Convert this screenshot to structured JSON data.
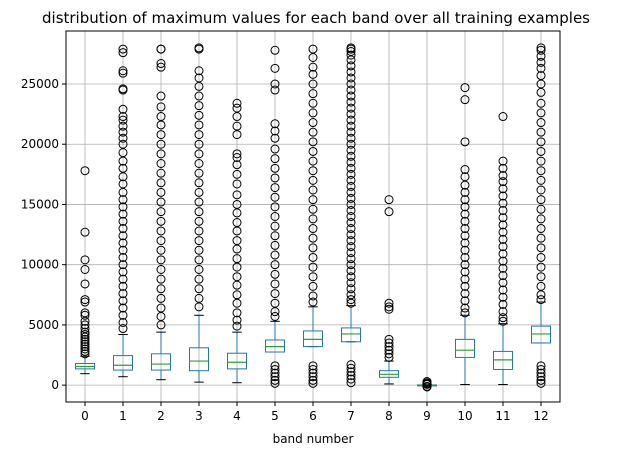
{
  "chart_data": {
    "type": "box",
    "title": "distribution of maximum values for each band over all training examples",
    "xlabel": "band number",
    "ylabel": "",
    "grid": true,
    "ylim": [
      -1400,
      29400
    ],
    "yticks": [
      0,
      5000,
      10000,
      15000,
      20000,
      25000
    ],
    "colors": {
      "box": "#1f77b4",
      "median": "#2ca02c",
      "flier": "#000000",
      "grid": "#b0b0b0"
    },
    "categories": [
      "0",
      "1",
      "2",
      "3",
      "4",
      "5",
      "6",
      "7",
      "8",
      "9",
      "10",
      "11",
      "12"
    ],
    "boxes": [
      {
        "band": "0",
        "whislo": 950,
        "q1": 1350,
        "med": 1550,
        "q3": 1800,
        "whishi": 2400,
        "fliers": [
          17800,
          12700,
          10400,
          9600,
          8400,
          7100,
          6900,
          6000,
          5800,
          5300,
          5000,
          4700,
          4400,
          4200,
          4000,
          3800,
          3600,
          3400,
          3200,
          3000,
          2800,
          2600
        ]
      },
      {
        "band": "1",
        "whislo": 700,
        "q1": 1250,
        "med": 1650,
        "q3": 2450,
        "whishi": 4200,
        "fliers": [
          27900,
          27600,
          26100,
          25900,
          24600,
          24500,
          22900,
          22300,
          22000,
          21500,
          21000,
          20500,
          20000,
          19300,
          18600,
          18000,
          17300,
          16700,
          16000,
          15400,
          14800,
          14200,
          13600,
          13000,
          12400,
          11800,
          11200,
          10600,
          10000,
          9400,
          8800,
          8200,
          7600,
          7000,
          6400,
          5800,
          5200,
          4700
        ]
      },
      {
        "band": "2",
        "whislo": 450,
        "q1": 1250,
        "med": 1750,
        "q3": 2600,
        "whishi": 4400,
        "fliers": [
          27900,
          27900,
          26700,
          26400,
          24000,
          23100,
          22300,
          21600,
          20800,
          20000,
          19200,
          18400,
          17600,
          16800,
          16000,
          15200,
          14400,
          13600,
          12800,
          12000,
          11200,
          10400,
          9600,
          8800,
          8000,
          7200,
          6400,
          5700,
          5000
        ]
      },
      {
        "band": "3",
        "whislo": 250,
        "q1": 1200,
        "med": 2000,
        "q3": 3100,
        "whishi": 5800,
        "fliers": [
          28000,
          27900,
          26100,
          25500,
          24800,
          24000,
          23200,
          22400,
          21600,
          20800,
          20000,
          19200,
          18400,
          17600,
          16800,
          16000,
          15200,
          14400,
          13600,
          12800,
          12000,
          11200,
          10400,
          9600,
          8800,
          8000,
          7200,
          6500
        ]
      },
      {
        "band": "4",
        "whislo": 200,
        "q1": 1350,
        "med": 1900,
        "q3": 2650,
        "whishi": 4400,
        "fliers": [
          23400,
          23000,
          22300,
          21500,
          20800,
          19200,
          18900,
          18300,
          17500,
          16700,
          15800,
          15000,
          14300,
          13500,
          12800,
          12000,
          11300,
          10500,
          9800,
          9000,
          8300,
          7500,
          6800,
          6000,
          5400,
          4900
        ]
      },
      {
        "band": "5",
        "whislo": 2750,
        "q1": 2750,
        "med": 3200,
        "q3": 3750,
        "whishi": 5300,
        "fliers": [
          27800,
          26300,
          25000,
          24500,
          21700,
          21100,
          20500,
          19600,
          18800,
          18000,
          17200,
          16400,
          15600,
          14800,
          14000,
          13200,
          12400,
          11600,
          10800,
          10000,
          9200,
          8400,
          7600,
          6800,
          6100,
          5700,
          1600,
          1300,
          1000,
          700,
          400,
          150
        ]
      },
      {
        "band": "6",
        "whislo": 3200,
        "q1": 3200,
        "med": 3800,
        "q3": 4500,
        "whishi": 6500,
        "fliers": [
          27900,
          27200,
          26400,
          25800,
          25000,
          24200,
          23400,
          22600,
          21800,
          21000,
          20200,
          19400,
          18600,
          17800,
          17000,
          16200,
          15400,
          14600,
          13800,
          13000,
          12200,
          11400,
          10600,
          9800,
          9000,
          8200,
          7400,
          6900,
          1600,
          1300,
          1000,
          700,
          400,
          150
        ]
      },
      {
        "band": "7",
        "whislo": 3600,
        "q1": 3600,
        "med": 4250,
        "q3": 4750,
        "whishi": 6600,
        "fliers": [
          28000,
          27900,
          27700,
          27400,
          27000,
          26500,
          26000,
          25500,
          25000,
          24500,
          24000,
          23500,
          23000,
          22500,
          22000,
          21500,
          21000,
          20500,
          20000,
          19500,
          19000,
          18500,
          18000,
          17500,
          17000,
          16500,
          16000,
          15500,
          15000,
          14500,
          14000,
          13500,
          13000,
          12500,
          12000,
          11500,
          11000,
          10500,
          10000,
          9500,
          9000,
          8500,
          8000,
          7500,
          7100,
          6800,
          1700,
          1400,
          1100,
          800,
          500,
          200
        ]
      },
      {
        "band": "8",
        "whislo": 100,
        "q1": 650,
        "med": 900,
        "q3": 1200,
        "whishi": 2000,
        "fliers": [
          15400,
          14400,
          6800,
          6500,
          6300,
          3800,
          3500,
          3200,
          2900,
          2600,
          2300
        ]
      },
      {
        "band": "9",
        "whislo": 0,
        "q1": 0,
        "med": 0,
        "q3": 20,
        "whishi": 50,
        "fliers": [
          300,
          200,
          120,
          60,
          -100,
          -150
        ]
      },
      {
        "band": "10",
        "whislo": 50,
        "q1": 2300,
        "med": 2900,
        "q3": 3800,
        "whishi": 5800,
        "fliers": [
          24700,
          23700,
          20200,
          17900,
          17300,
          16600,
          16000,
          15400,
          14800,
          14200,
          13600,
          13000,
          12400,
          11800,
          11200,
          10600,
          10000,
          9400,
          8800,
          8200,
          7600,
          7000,
          6400,
          6000
        ]
      },
      {
        "band": "11",
        "whislo": 50,
        "q1": 1300,
        "med": 2100,
        "q3": 2800,
        "whishi": 5100,
        "fliers": [
          22300,
          18600,
          18000,
          17400,
          16900,
          16300,
          15700,
          15100,
          14500,
          13900,
          13300,
          12700,
          12100,
          11500,
          10900,
          10300,
          9700,
          9100,
          8500,
          7900,
          7300,
          6700,
          6100,
          5600,
          5300
        ]
      },
      {
        "band": "12",
        "whislo": 3500,
        "q1": 3500,
        "med": 4250,
        "q3": 4900,
        "whishi": 6900,
        "fliers": [
          28000,
          27800,
          27300,
          26800,
          26300,
          25700,
          25000,
          24300,
          23400,
          22600,
          21800,
          21000,
          20200,
          19400,
          18600,
          17800,
          17000,
          16200,
          15400,
          14600,
          13800,
          13000,
          12200,
          11400,
          10600,
          9800,
          9000,
          8200,
          7500,
          7100,
          1600,
          1300,
          1000,
          700,
          400,
          150
        ]
      }
    ]
  }
}
